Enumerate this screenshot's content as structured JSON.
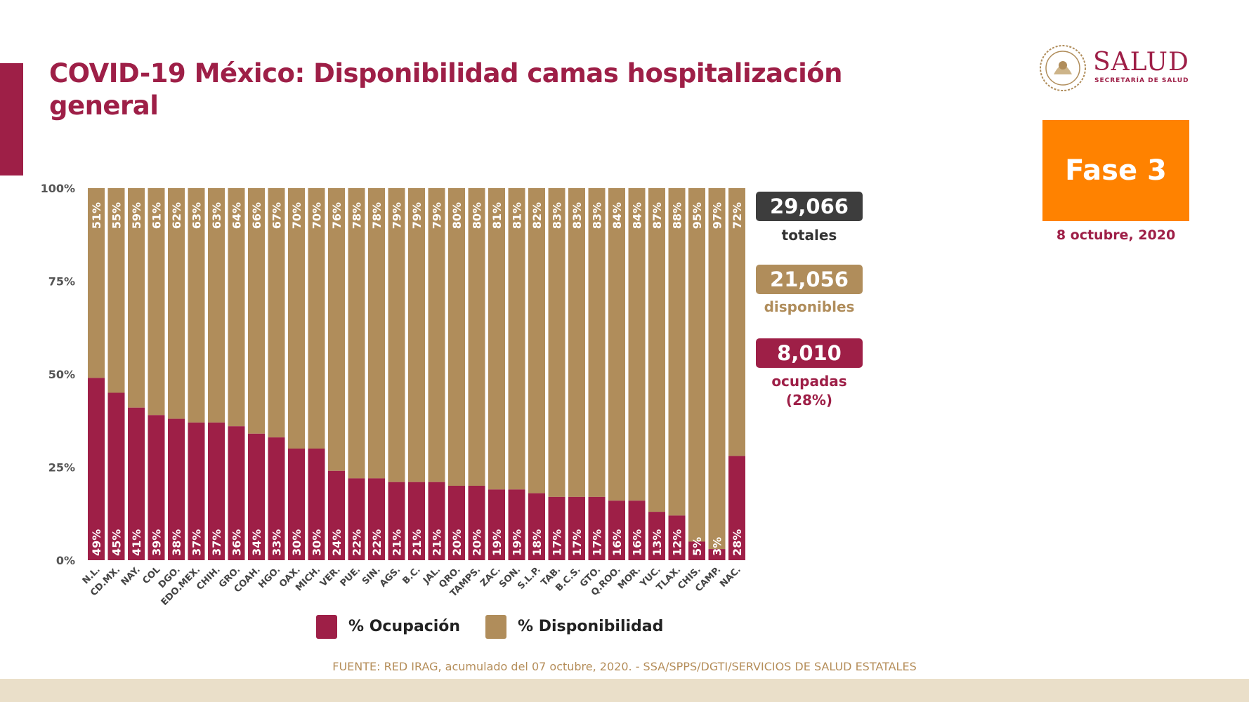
{
  "title": "COVID-19 México: Disponibilidad camas hospitalización general",
  "logo": {
    "name": "SALUD",
    "subtitle": "SECRETARÍA DE SALUD"
  },
  "phase": "Fase 3",
  "date": "8 octubre, 2020",
  "stats": {
    "total_value": "29,066",
    "total_label": "totales",
    "available_value": "21,056",
    "available_label": "disponibles",
    "occupied_value": "8,010",
    "occupied_label": "ocupadas",
    "occupied_pct": "(28%)"
  },
  "legend": {
    "occupation": "% Ocupación",
    "availability": "% Disponibilidad"
  },
  "source": "FUENTE: RED IRAG, acumulado del 07 octubre, 2020. -  SSA/SPPS/DGTI/SERVICIOS DE SALUD ESTATALES",
  "colors": {
    "occupation": "#9e1f47",
    "availability": "#b08d5b",
    "total_box": "#3d3d3d",
    "phase": "#ff8200"
  },
  "chart_data": {
    "type": "bar",
    "stacked": true,
    "percent_stacked": true,
    "categories": [
      "N.L.",
      "CD.MX.",
      "NAY.",
      "COL",
      "DGO.",
      "EDO.MEX.",
      "CHIH.",
      "GRO.",
      "COAH.",
      "HGO.",
      "OAX.",
      "MICH.",
      "VER.",
      "PUE.",
      "SIN.",
      "AGS.",
      "B.C.",
      "JAL.",
      "QRO.",
      "TAMPS.",
      "ZAC.",
      "SON.",
      "S.L.P.",
      "TAB.",
      "B.C.S.",
      "GTO.",
      "Q.ROO.",
      "MOR.",
      "YUC.",
      "TLAX.",
      "CHIS.",
      "CAMP.",
      "NAC."
    ],
    "series": [
      {
        "name": "% Ocupación",
        "values": [
          49,
          45,
          41,
          39,
          38,
          37,
          37,
          36,
          34,
          33,
          30,
          30,
          24,
          22,
          22,
          21,
          21,
          21,
          20,
          20,
          19,
          19,
          18,
          17,
          17,
          17,
          16,
          16,
          13,
          12,
          5,
          3,
          28
        ],
        "labels": [
          "49%",
          "45%",
          "41%",
          "39%",
          "38%",
          "37%",
          "37%",
          "36%",
          "34%",
          "33%",
          "30%",
          "30%",
          "24%",
          "22%",
          "22%",
          "21%",
          "21%",
          "21%",
          "20%",
          "20%",
          "19%",
          "19%",
          "18%",
          "17%",
          "17%",
          "17%",
          "16%",
          "16%",
          "13%",
          "12%",
          "5%",
          "3%",
          "28%"
        ]
      },
      {
        "name": "% Disponibilidad",
        "values": [
          51,
          55,
          59,
          61,
          62,
          63,
          63,
          64,
          66,
          67,
          70,
          70,
          76,
          78,
          78,
          79,
          79,
          79,
          80,
          80,
          81,
          81,
          82,
          83,
          83,
          83,
          84,
          84,
          87,
          88,
          95,
          97,
          72
        ],
        "labels": [
          "51%",
          "55%",
          "59%",
          "61%",
          "62%",
          "63%",
          "63%",
          "64%",
          "66%",
          "67%",
          "70%",
          "70%",
          "76%",
          "78%",
          "78%",
          "79%",
          "79%",
          "79%",
          "80%",
          "80%",
          "81%",
          "81%",
          "82%",
          "83%",
          "83%",
          "83%",
          "84%",
          "84%",
          "87%",
          "88%",
          "95%",
          "97%",
          "72%"
        ]
      }
    ],
    "ylim": [
      0,
      100
    ],
    "y_ticks": [
      "0%",
      "25%",
      "50%",
      "75%",
      "100%"
    ],
    "legend_position": "bottom"
  }
}
